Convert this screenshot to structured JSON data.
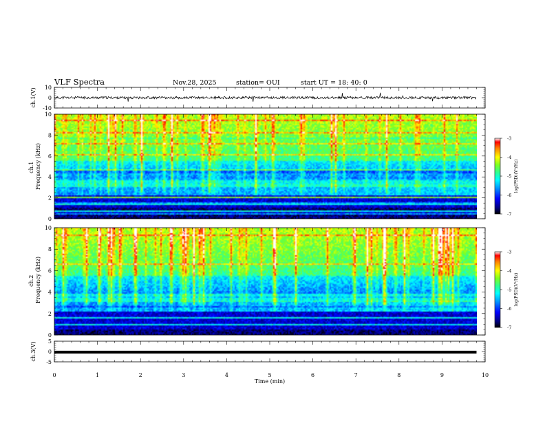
{
  "header": {
    "title": "VLF Spectra",
    "date": "Nov.28, 2025",
    "station": "station= OUI",
    "start_ut": "start  UT =   18: 40: 0"
  },
  "chart_data": {
    "type": "heatmap",
    "title": "VLF Spectra",
    "xlabel": "Time  (min)",
    "xlim": [
      0,
      10
    ],
    "x_ticks": [
      "0",
      "1",
      "2",
      "3",
      "4",
      "5",
      "6",
      "7",
      "8",
      "9",
      "10"
    ],
    "panels": [
      {
        "id": "ch1-waveform",
        "type": "line",
        "ylabel": "ch.1(V)",
        "ylim": [
          -10,
          10
        ],
        "y_ticks": [
          "10",
          "0",
          "-10"
        ],
        "signal_level": 0,
        "data_end": 9.8
      },
      {
        "id": "ch1-spectrogram",
        "type": "heatmap",
        "ylabel": "ch.1\nFrequency  (kHz)",
        "ylim": [
          0,
          10
        ],
        "y_ticks": [
          "0",
          "2",
          "4",
          "6",
          "8",
          "10"
        ],
        "data_end": 9.8,
        "colorbar": {
          "label": "log(PSD)(V²/Hz)",
          "range": [
            -7,
            -3
          ],
          "ticks": [
            "-3",
            "-4",
            "-5",
            "-6",
            "-7"
          ]
        }
      },
      {
        "id": "ch2-spectrogram",
        "type": "heatmap",
        "ylabel": "ch.2\nFrequency  (kHz)",
        "ylim": [
          0,
          10
        ],
        "y_ticks": [
          "0",
          "2",
          "4",
          "6",
          "8",
          "10"
        ],
        "data_end": 9.8,
        "colorbar": {
          "label": "log(PSD)(V²/Hz)",
          "range": [
            -7,
            -3
          ],
          "ticks": [
            "-3",
            "-4",
            "-5",
            "-6",
            "-7"
          ]
        }
      },
      {
        "id": "ch3-waveform",
        "type": "line",
        "ylabel": "ch.3(V)",
        "ylim": [
          -5,
          5
        ],
        "y_ticks": [
          "5",
          "0",
          "-5"
        ],
        "signal_level": -0.3,
        "data_end": 9.8
      }
    ],
    "colormap": [
      "#000000",
      "#00007f",
      "#0000ff",
      "#00a0ff",
      "#00ffff",
      "#30ff90",
      "#80ff20",
      "#c8ff00",
      "#ffff00",
      "#ff8000",
      "#ff0000",
      "#ffffff"
    ]
  }
}
